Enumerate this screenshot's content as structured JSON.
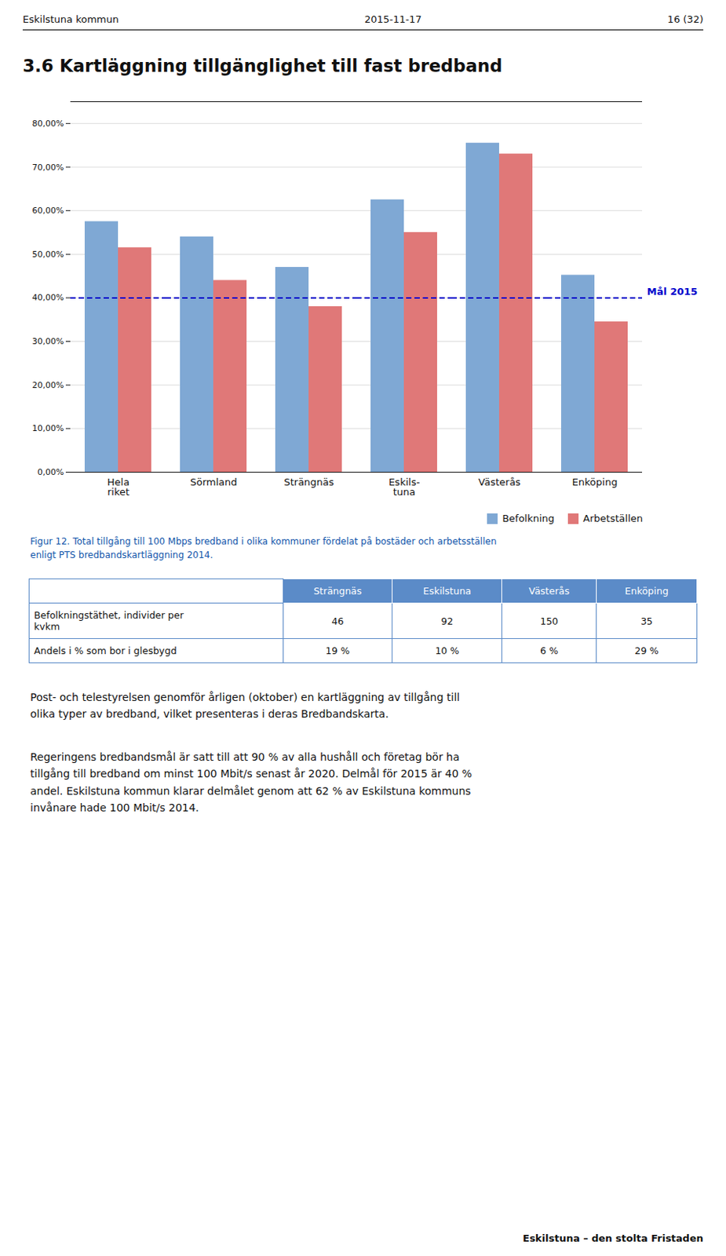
{
  "header": [
    "Eskilstuna kommun",
    "2015-11-17",
    "16 (32)"
  ],
  "chart_data": {
    "type": "bar",
    "title": "3.6  Kartläggning tillgänglighet till fast bredband",
    "categories": [
      "Hela\nriket",
      "Sörmland",
      "Strängnäs",
      "Eskils-\ntuna",
      "Västerås",
      "Enköping"
    ],
    "series": [
      {
        "name": "Befolkning",
        "color": "#7FA8D4",
        "values": [
          0.575,
          0.54,
          0.47,
          0.625,
          0.755,
          0.452
        ]
      },
      {
        "name": "Arbetställen",
        "color": "#E07878",
        "values": [
          0.515,
          0.44,
          0.38,
          0.55,
          0.73,
          0.345
        ]
      }
    ],
    "ylim": [
      0,
      0.85
    ],
    "yticks": [
      {
        "value": 0.0,
        "label": "0,00%"
      },
      {
        "value": 0.1,
        "label": "10,00%"
      },
      {
        "value": 0.2,
        "label": "20,00%"
      },
      {
        "value": 0.3,
        "label": "30,00%"
      },
      {
        "value": 0.4,
        "label": "40,00%"
      },
      {
        "value": 0.5,
        "label": "50,00%"
      },
      {
        "value": 0.6,
        "label": "60,00%"
      },
      {
        "value": 0.7,
        "label": "70,00%"
      },
      {
        "value": 0.8,
        "label": "80,00%"
      }
    ],
    "grid": true,
    "legend": "lower right",
    "annotations": [
      {
        "type": "hline",
        "y": 0.4,
        "label": "Mål 2015",
        "color": "#0000CC",
        "line_style": "dashed"
      }
    ]
  },
  "figcaption": "Figur 12. Total tillgång till 100 Mbps bredband i olika kommuner fördelat på bostäder och arbetsställen\nenligt PTS bredbandskartläggning 2014.",
  "table": {
    "header": [
      "Strängnäs",
      "Eskilstuna",
      "Västerås",
      "Enköping"
    ],
    "rows": [
      {
        "label": "Befolkningstäthet, individer per\nkvkm",
        "values": [
          "46",
          "92",
          "150",
          "35"
        ]
      },
      {
        "label": "Andels i % som bor i glesbygd",
        "values": [
          "19 %",
          "10 %",
          "6 %",
          "29 %"
        ]
      }
    ]
  },
  "paragraphs": [
    "Post- och telestyrelsen genomför årligen (oktober) en kartläggning av tillgång till\nolika typer av bredband, vilket presenteras i deras Bredbandskarta.",
    "Regeringens bredbandsmål är satt till att 90 % av alla hushåll och företag bör ha\ntillgång till bredband om minst 100 Mbit/s senast år 2020. Delmål för 2015 är 40 %\nandel. Eskilstuna kommun klarar delmålet genom att 62 % av Eskilstuna kommuns\ninvånare hade 100 Mbit/s 2014."
  ],
  "footer": "Eskilstuna – den stolta Fristaden"
}
